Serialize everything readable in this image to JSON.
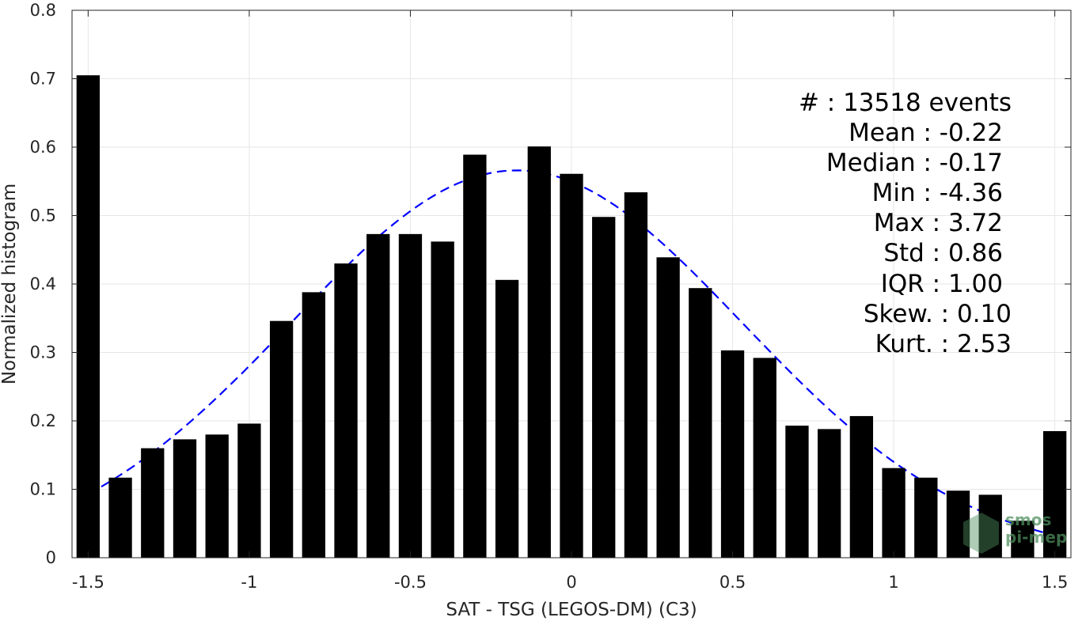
{
  "chart_data": {
    "type": "bar",
    "xlabel": "SAT - TSG (LEGOS-DM) (C3)",
    "ylabel": "Normalized histogram",
    "xlim": [
      -1.55,
      1.55
    ],
    "ylim": [
      0,
      0.8
    ],
    "xticks": [
      -1.5,
      -1,
      -0.5,
      0,
      0.5,
      1,
      1.5
    ],
    "xtick_labels": [
      "-1.5",
      "-1",
      "-0.5",
      "0",
      "0.5",
      "1",
      "1.5"
    ],
    "yticks": [
      0,
      0.1,
      0.2,
      0.3,
      0.4,
      0.5,
      0.6,
      0.7,
      0.8
    ],
    "ytick_labels": [
      "0",
      "0.1",
      "0.2",
      "0.3",
      "0.4",
      "0.5",
      "0.6",
      "0.7",
      "0.8"
    ],
    "grid": true,
    "bar_color": "#000000",
    "fit_color": "#0000ff",
    "bin_centers": [
      -1.5,
      -1.4,
      -1.3,
      -1.2,
      -1.1,
      -1.0,
      -0.9,
      -0.8,
      -0.7,
      -0.6,
      -0.5,
      -0.4,
      -0.3,
      -0.2,
      -0.1,
      0.0,
      0.1,
      0.2,
      0.3,
      0.4,
      0.5,
      0.6,
      0.7,
      0.8,
      0.9,
      1.0,
      1.1,
      1.2,
      1.3,
      1.4,
      1.5
    ],
    "values": [
      0.705,
      0.117,
      0.16,
      0.173,
      0.18,
      0.196,
      0.346,
      0.388,
      0.43,
      0.473,
      0.473,
      0.462,
      0.589,
      0.406,
      0.601,
      0.561,
      0.498,
      0.534,
      0.439,
      0.394,
      0.303,
      0.292,
      0.193,
      0.188,
      0.207,
      0.131,
      0.117,
      0.098,
      0.092,
      0.054,
      0.185
    ],
    "fit": {
      "type": "normal",
      "mean": -0.17,
      "std": 0.7,
      "peak": 0.566,
      "style": "dashed"
    },
    "annotations": [
      "#  : 13518 events",
      "Mean : -0.22",
      "Median : -0.17",
      "Min : -4.36",
      "Max : 3.72",
      "Std : 0.86",
      "IQR : 1.00",
      "Skew. : 0.10",
      "Kurt. : 2.53"
    ],
    "watermark": [
      "smos",
      "pi-mep"
    ]
  }
}
